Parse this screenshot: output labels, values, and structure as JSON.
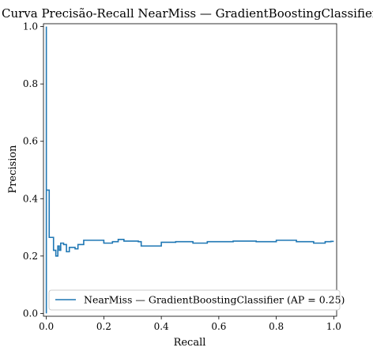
{
  "chart_data": {
    "type": "line",
    "title": "Curva Precisão-Recall NearMiss — GradientBoostingClassifier",
    "xlabel": "Recall",
    "ylabel": "Precision",
    "xlim": [
      -0.01,
      1.01
    ],
    "ylim": [
      -0.01,
      1.01
    ],
    "xticks": [
      0.0,
      0.2,
      0.4,
      0.6,
      0.8,
      1.0
    ],
    "xtick_labels": [
      "0.0",
      "0.2",
      "0.4",
      "0.6",
      "0.8",
      "1.0"
    ],
    "yticks": [
      0.0,
      0.2,
      0.4,
      0.6,
      0.8,
      1.0
    ],
    "ytick_labels": [
      "0.0",
      "0.2",
      "0.4",
      "0.6",
      "0.8",
      "1.0"
    ],
    "grid": false,
    "legend": {
      "position": "lower-right",
      "entries": [
        "NearMiss — GradientBoostingClassifier (AP = 0.25)"
      ]
    },
    "series": [
      {
        "name": "NearMiss — GradientBoostingClassifier (AP = 0.25)",
        "color": "#1f77b4",
        "drawstyle": "steps-post",
        "recall": [
          1.0,
          0.99,
          0.97,
          0.93,
          0.87,
          0.8,
          0.73,
          0.65,
          0.6,
          0.56,
          0.51,
          0.45,
          0.4,
          0.33,
          0.32,
          0.27,
          0.25,
          0.23,
          0.2,
          0.18,
          0.13,
          0.11,
          0.1,
          0.08,
          0.07,
          0.06,
          0.05,
          0.045,
          0.04,
          0.033,
          0.025,
          0.01,
          0.0
        ],
        "precision": [
          0.251,
          0.25,
          0.245,
          0.25,
          0.255,
          0.25,
          0.252,
          0.25,
          0.25,
          0.245,
          0.25,
          0.248,
          0.235,
          0.25,
          0.252,
          0.258,
          0.25,
          0.245,
          0.255,
          0.255,
          0.24,
          0.225,
          0.23,
          0.215,
          0.24,
          0.245,
          0.22,
          0.235,
          0.2,
          0.22,
          0.265,
          0.43,
          1.0
        ]
      }
    ]
  }
}
